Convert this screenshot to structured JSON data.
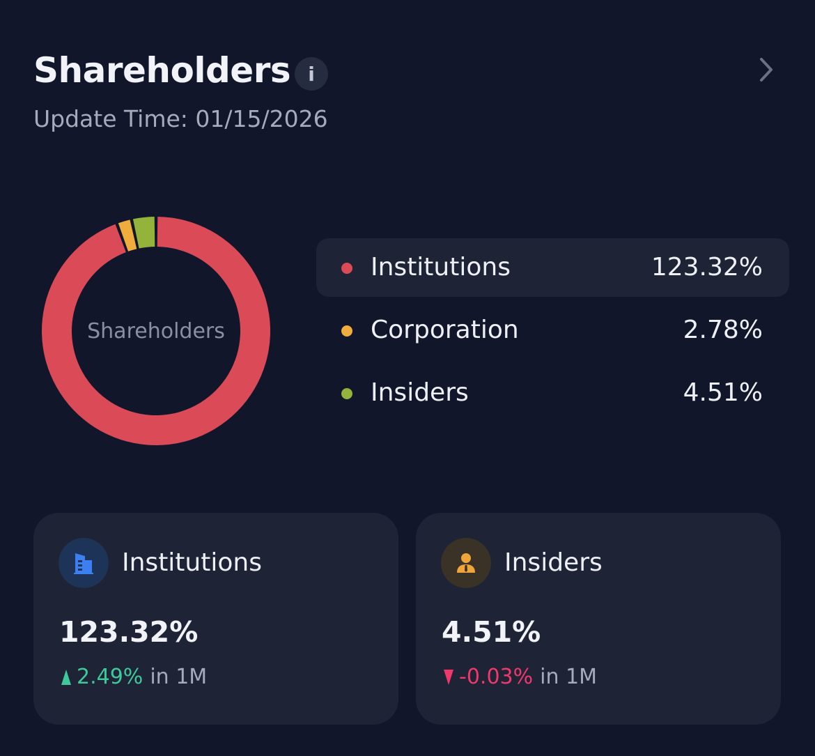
{
  "header": {
    "title": "Shareholders",
    "info_label": "i",
    "update_time": "Update Time: 01/15/2026"
  },
  "chart_data": {
    "type": "pie",
    "center_label": "Shareholders",
    "categories": [
      "Institutions",
      "Corporation",
      "Insiders"
    ],
    "values": [
      123.32,
      2.78,
      4.51
    ],
    "value_labels": [
      "123.32%",
      "2.78%",
      "4.51%"
    ],
    "colors": [
      "#db4a57",
      "#f0ac3c",
      "#94b33a"
    ],
    "selected": "Institutions"
  },
  "legend": [
    {
      "label": "Institutions",
      "value": "123.32%",
      "color": "#db4a57",
      "selected": true
    },
    {
      "label": "Corporation",
      "value": "2.78%",
      "color": "#f0ac3c",
      "selected": false
    },
    {
      "label": "Insiders",
      "value": "4.51%",
      "color": "#94b33a",
      "selected": false
    }
  ],
  "cards": {
    "institutions": {
      "label": "Institutions",
      "value": "123.32%",
      "change": "2.49%",
      "change_direction": "up",
      "period": "in 1M",
      "icon": "building-icon"
    },
    "insiders": {
      "label": "Insiders",
      "value": "4.51%",
      "change": "-0.03%",
      "change_direction": "down",
      "period": "in 1M",
      "icon": "person-icon"
    }
  },
  "colors": {
    "background": "#11162a",
    "panel": "#1e2336",
    "up": "#3ec99b",
    "down": "#f0386b"
  }
}
